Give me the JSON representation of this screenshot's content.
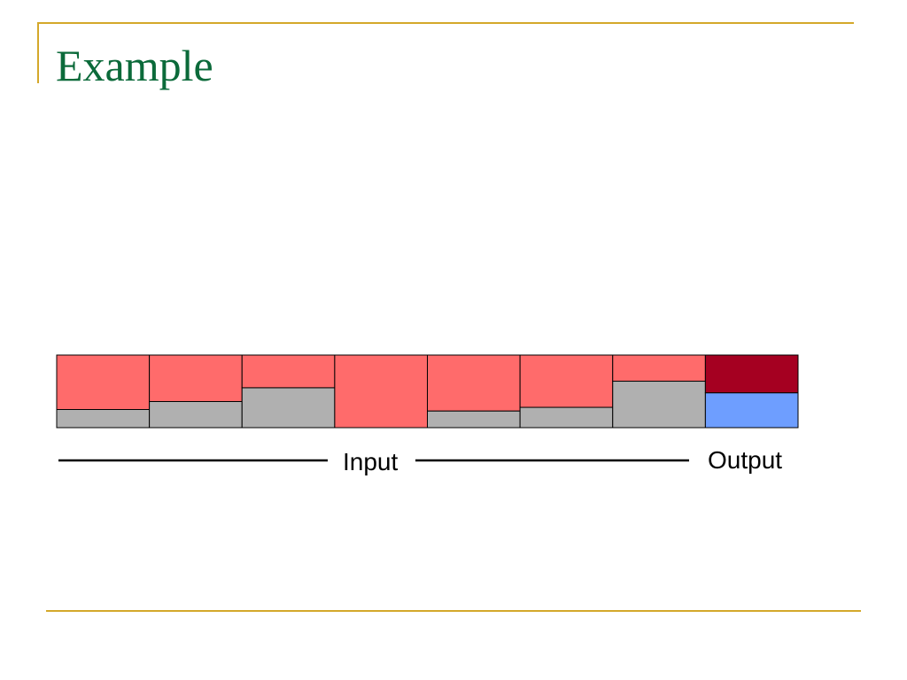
{
  "slide": {
    "title": "Example"
  },
  "diagram": {
    "input_label": "Input",
    "output_label": "Output",
    "input_cells": [
      {
        "fill_fraction": 0.75
      },
      {
        "fill_fraction": 0.64
      },
      {
        "fill_fraction": 0.45
      },
      {
        "fill_fraction": 1.0
      },
      {
        "fill_fraction": 0.77
      },
      {
        "fill_fraction": 0.72
      },
      {
        "fill_fraction": 0.36
      }
    ],
    "output_cell": {
      "fill_fraction": 0.52
    },
    "colors": {
      "input_fill": "#ff6b6b",
      "input_remainder": "#b0b0b0",
      "output_fill": "#a50021",
      "output_remainder": "#6e9eff",
      "rule": "#d4a82a",
      "title": "#0b6a3a"
    }
  }
}
